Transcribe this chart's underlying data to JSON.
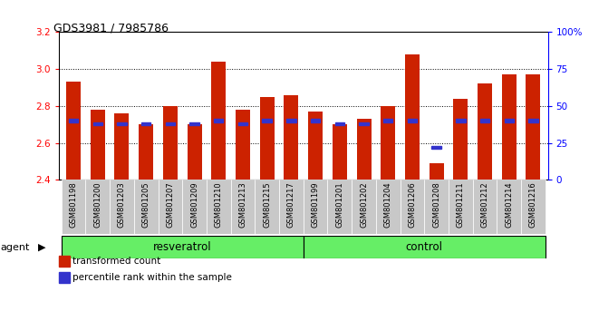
{
  "title": "GDS3981 / 7985786",
  "categories": [
    "GSM801198",
    "GSM801200",
    "GSM801203",
    "GSM801205",
    "GSM801207",
    "GSM801209",
    "GSM801210",
    "GSM801213",
    "GSM801215",
    "GSM801217",
    "GSM801199",
    "GSM801201",
    "GSM801202",
    "GSM801204",
    "GSM801206",
    "GSM801208",
    "GSM801211",
    "GSM801212",
    "GSM801214",
    "GSM801216"
  ],
  "red_values": [
    2.93,
    2.78,
    2.76,
    2.7,
    2.8,
    2.7,
    3.04,
    2.78,
    2.85,
    2.86,
    2.77,
    2.7,
    2.73,
    2.8,
    3.08,
    2.49,
    2.84,
    2.92,
    2.97,
    2.97
  ],
  "blue_percentiles": [
    40,
    38,
    38,
    38,
    38,
    38,
    40,
    38,
    40,
    40,
    40,
    38,
    38,
    40,
    40,
    22,
    40,
    40,
    40,
    40
  ],
  "ylim_left": [
    2.4,
    3.2
  ],
  "ylim_right": [
    0,
    100
  ],
  "yticks_left": [
    2.4,
    2.6,
    2.8,
    3.0,
    3.2
  ],
  "yticks_right": [
    0,
    25,
    50,
    75,
    100
  ],
  "ytick_labels_right": [
    "0",
    "25",
    "50",
    "75",
    "100%"
  ],
  "resveratrol_count": 10,
  "control_count": 10,
  "bar_color": "#CC2200",
  "blue_color": "#3333CC",
  "cell_bg": "#c8c8c8",
  "green_bg": "#66ee66",
  "agent_label": "agent",
  "resveratrol_label": "resveratrol",
  "control_label": "control",
  "legend_red": "transformed count",
  "legend_blue": "percentile rank within the sample"
}
